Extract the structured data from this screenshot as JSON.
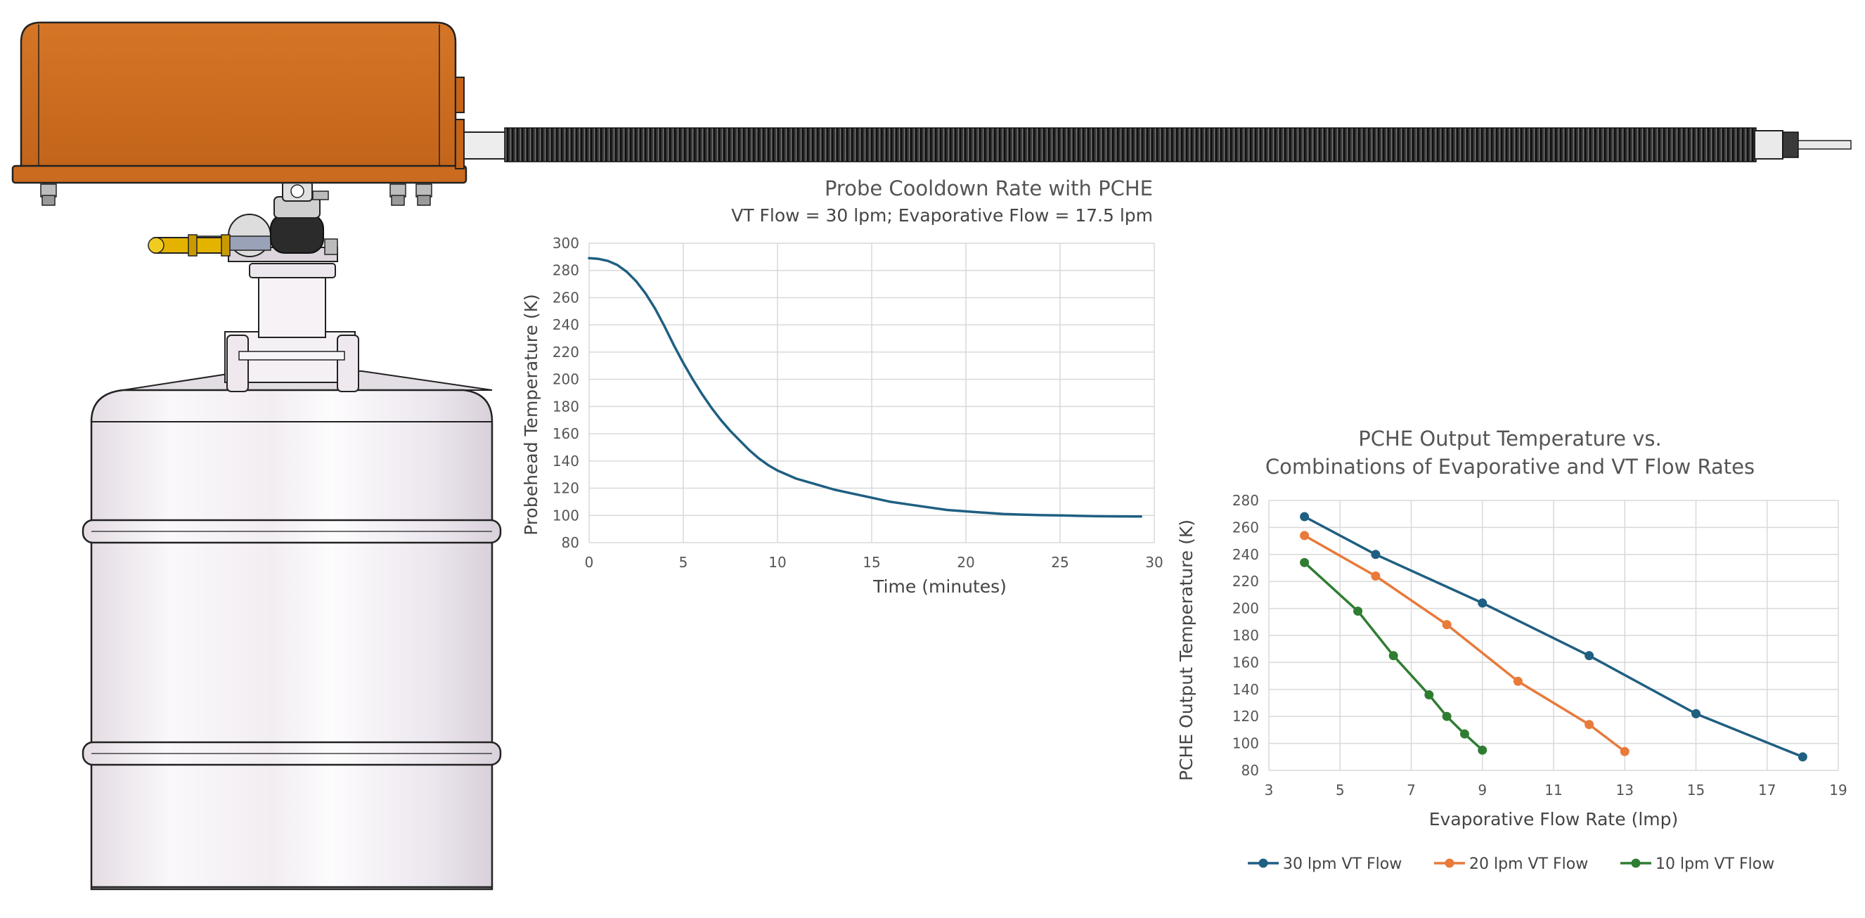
{
  "colors": {
    "series_30": "#1F5F82",
    "series_20": "#E87A3A",
    "series_10": "#2F7D32",
    "grid": "#D9D9D9",
    "housing_orange": "#D26F22",
    "dewar_body": "#F3EEF3"
  },
  "chart_data": [
    {
      "type": "line",
      "title": "Probe Cooldown Rate with PCHE",
      "subtitle": "VT Flow = 30 lpm; Evaporative Flow = 17.5 lpm",
      "xlabel": "Time (minutes)",
      "ylabel": "Probehead  Temperature (K)",
      "xlim": [
        0,
        30
      ],
      "ylim": [
        80,
        300
      ],
      "xticks": [
        0,
        5,
        10,
        15,
        20,
        25,
        30
      ],
      "yticks": [
        80,
        100,
        120,
        140,
        160,
        180,
        200,
        220,
        240,
        260,
        280,
        300
      ],
      "grid": true,
      "series": [
        {
          "x": [
            0,
            0.5,
            1,
            1.5,
            2,
            2.5,
            3,
            3.5,
            4,
            4.5,
            5,
            5.5,
            6,
            6.5,
            7,
            7.5,
            8,
            8.5,
            9,
            9.5,
            10,
            11,
            12,
            13,
            14,
            15,
            16,
            17,
            18,
            19,
            20,
            21,
            22,
            23,
            24,
            25,
            26,
            27,
            28,
            29,
            29.3
          ],
          "y": [
            289,
            288.5,
            287,
            284,
            279,
            272,
            263,
            252,
            239,
            225,
            212,
            200,
            189,
            179,
            170,
            162,
            155,
            148,
            142,
            137,
            133,
            127,
            123,
            119,
            116,
            113,
            110,
            108,
            106,
            104,
            103,
            102,
            101,
            100.6,
            100.2,
            100,
            99.7,
            99.4,
            99.3,
            99.2,
            99.2
          ]
        }
      ]
    },
    {
      "type": "line",
      "title": "PCHE Output Temperature vs.",
      "subtitle": "Combinations of Evaporative and VT Flow Rates",
      "xlabel": "Evaporative Flow Rate (lmp)",
      "ylabel": "PCHE Output Temperature (K)",
      "xlim": [
        3,
        19
      ],
      "ylim": [
        80,
        280
      ],
      "xticks": [
        3,
        5,
        7,
        9,
        11,
        13,
        15,
        17,
        19
      ],
      "yticks": [
        80,
        100,
        120,
        140,
        160,
        180,
        200,
        220,
        240,
        260,
        280
      ],
      "grid": true,
      "legend": "bottom",
      "series": [
        {
          "name": "30 lpm VT Flow",
          "x": [
            4,
            6,
            9,
            12,
            15,
            18
          ],
          "y": [
            268,
            240,
            204,
            165,
            122,
            90
          ]
        },
        {
          "name": "20 lpm VT Flow",
          "x": [
            4,
            6,
            8,
            10,
            12,
            13
          ],
          "y": [
            254,
            224,
            188,
            146,
            114,
            94
          ]
        },
        {
          "name": "10 lpm VT Flow",
          "x": [
            4,
            5.5,
            6.5,
            7.5,
            8,
            8.5,
            9
          ],
          "y": [
            234,
            198,
            165,
            136,
            120,
            107,
            95
          ]
        }
      ]
    }
  ]
}
